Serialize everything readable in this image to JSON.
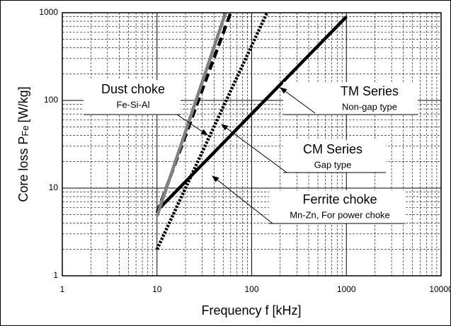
{
  "chart_data": {
    "type": "line",
    "x_scale": "log",
    "y_scale": "log",
    "xlabel": "Frequency  f [kHz]",
    "ylabel": {
      "text": "Core loss  P",
      "sub": "Fe",
      "unit": "[W/kg]"
    },
    "xlim": [
      1,
      10000
    ],
    "ylim": [
      1,
      1000
    ],
    "xticks": [
      1,
      10,
      100,
      1000,
      10000
    ],
    "yticks": [
      1,
      10,
      100,
      1000
    ],
    "grid": true,
    "minor_grid": true,
    "series": [
      {
        "name": "TM Series",
        "note": "Non-gap type",
        "color": "#000000",
        "style": "solid",
        "x": [
          10,
          1000
        ],
        "values": [
          5.5,
          900
        ]
      },
      {
        "name": "Dust choke",
        "note": "Fe-Si-Al",
        "color": "#000000",
        "style": "dashed",
        "x": [
          10,
          60
        ],
        "values": [
          5.2,
          1000
        ]
      },
      {
        "name": "CM Series",
        "note": "Gap type",
        "color": "#808080",
        "style": "solid",
        "x": [
          10,
          53
        ],
        "values": [
          4.8,
          1000
        ]
      },
      {
        "name": "Ferrite choke",
        "note": "Mn-Zn, For power choke",
        "color": "#000000",
        "style": "dotted",
        "x": [
          10,
          145
        ],
        "values": [
          2,
          1000
        ]
      }
    ]
  }
}
